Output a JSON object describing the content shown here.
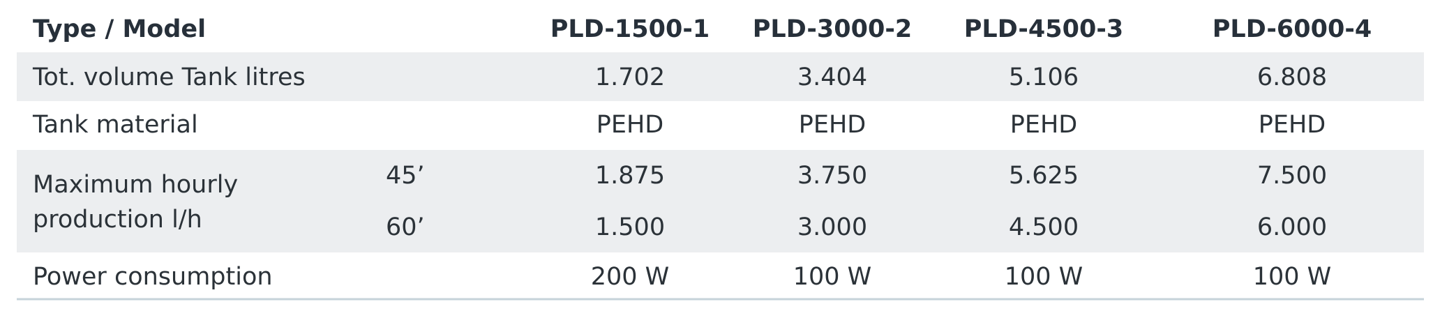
{
  "table": {
    "header": [
      "Type / Model",
      "PLD-1500-1",
      "PLD-3000-2",
      "PLD-4500-3",
      "PLD-6000-4"
    ],
    "rows": [
      {
        "label": "Tot. volume Tank litres",
        "cells": [
          "1.702",
          "3.404",
          "5.106",
          "6.808"
        ]
      },
      {
        "label": "Tank material",
        "cells": [
          "PEHD",
          "PEHD",
          "PEHD",
          "PEHD"
        ]
      },
      {
        "label": [
          "Maximum hourly",
          "production l/h"
        ],
        "subrows": [
          {
            "label": "45’",
            "cells": [
              "1.875",
              "3.750",
              "5.625",
              "7.500"
            ]
          },
          {
            "label": "60’",
            "cells": [
              "1.500",
              "3.000",
              "4.500",
              "6.000"
            ]
          }
        ]
      },
      {
        "label": "Power consumption",
        "cells": [
          "200 W",
          "100 W",
          "100 W",
          "100 W"
        ]
      }
    ]
  }
}
